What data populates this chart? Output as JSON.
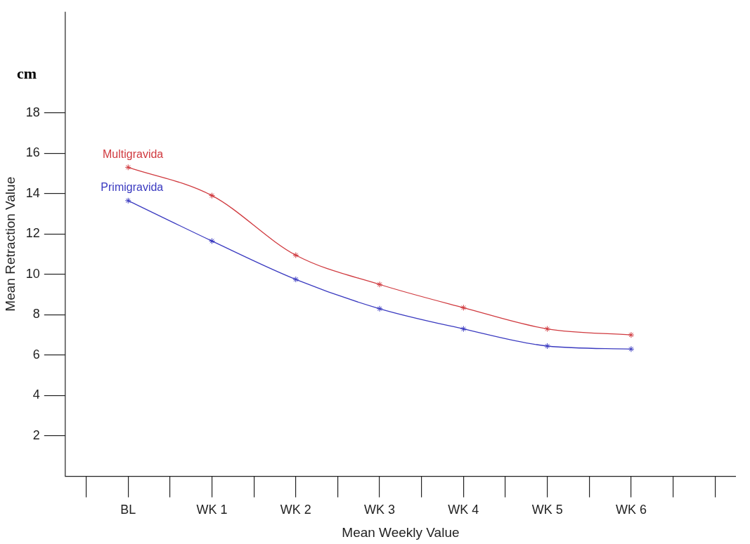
{
  "chart_data": {
    "type": "line",
    "xlabel": "Mean Weekly Value",
    "ylabel": "Mean Retraction Value",
    "annotations": [
      "cm"
    ],
    "categories": [
      null,
      "BL",
      null,
      "WK 1",
      null,
      "WK 2",
      null,
      "WK 3",
      null,
      "WK 4",
      null,
      "WK 5",
      null,
      "WK 6",
      null,
      null
    ],
    "series": [
      {
        "name": "Multigravida",
        "color": "#d03a3f",
        "values": [
          null,
          15.3,
          null,
          13.9,
          null,
          10.95,
          null,
          9.5,
          null,
          8.35,
          null,
          7.3,
          null,
          7.0,
          null,
          null
        ]
      },
      {
        "name": "Primigravida",
        "color": "#3a3ac0",
        "values": [
          null,
          13.65,
          null,
          11.65,
          null,
          9.75,
          null,
          8.3,
          null,
          7.3,
          null,
          6.45,
          null,
          6.3,
          null,
          null
        ]
      }
    ],
    "ylim": [
      0,
      23
    ],
    "yticks": [
      2,
      4,
      6,
      8,
      10,
      12,
      14,
      16,
      18
    ],
    "grid": false,
    "legend": false,
    "marker": "cross",
    "line_style": "solid"
  }
}
